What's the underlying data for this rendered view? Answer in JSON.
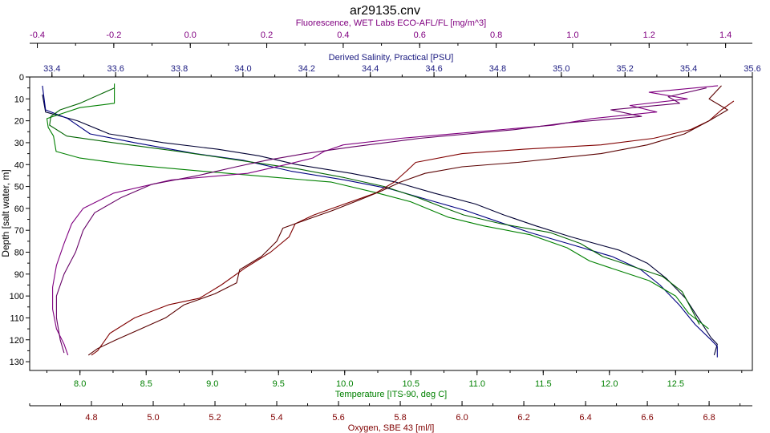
{
  "chart_data": {
    "type": "line",
    "title": "ar29135.cnv",
    "grid": false,
    "ylabel": "Depth [salt water, m]",
    "ylim": [
      0,
      134
    ],
    "yticks": [
      0,
      10,
      20,
      30,
      40,
      50,
      60,
      70,
      80,
      90,
      100,
      110,
      120,
      130
    ],
    "axes": [
      {
        "id": "fluor",
        "position": "top-outer",
        "label": "Fluorescence, WET Labs ECO-AFL/FL [mg/m^3]",
        "color": "#800080",
        "lim": [
          -0.42,
          1.47
        ],
        "ticks": [
          -0.4,
          -0.2,
          0.0,
          0.2,
          0.4,
          0.6,
          0.8,
          1.0,
          1.2,
          1.4
        ]
      },
      {
        "id": "salinity",
        "position": "top-inner",
        "label": "Derived Salinity, Practical [PSU]",
        "color": "#1a1a80",
        "lim": [
          33.33,
          35.6
        ],
        "ticks": [
          33.4,
          33.6,
          33.8,
          34.0,
          34.2,
          34.4,
          34.6,
          34.8,
          35.0,
          35.2,
          35.4,
          35.6
        ]
      },
      {
        "id": "temp",
        "position": "bottom-inner",
        "label": "Temperature [ITS-90, deg C]",
        "color": "#008000",
        "lim": [
          7.62,
          13.08
        ],
        "ticks": [
          8.0,
          8.5,
          9.0,
          9.5,
          10.0,
          10.5,
          11.0,
          11.5,
          12.0,
          12.5
        ]
      },
      {
        "id": "oxygen",
        "position": "bottom-outer",
        "label": "Oxygen, SBE 43 [ml/l]",
        "color": "#800000",
        "lim": [
          4.6,
          6.94
        ],
        "ticks": [
          4.8,
          5.0,
          5.2,
          5.4,
          5.6,
          5.8,
          6.0,
          6.2,
          6.4,
          6.6,
          6.8
        ]
      }
    ],
    "series": [
      {
        "axis": "salinity",
        "color": "#000033",
        "points": [
          [
            33.37,
            8
          ],
          [
            33.38,
            16
          ],
          [
            33.48,
            20
          ],
          [
            33.58,
            26
          ],
          [
            33.75,
            30
          ],
          [
            33.92,
            33
          ],
          [
            34.05,
            36
          ],
          [
            34.17,
            40
          ],
          [
            34.34,
            44
          ],
          [
            34.48,
            48
          ],
          [
            34.6,
            53
          ],
          [
            34.73,
            58
          ],
          [
            34.82,
            63
          ],
          [
            34.92,
            68
          ],
          [
            35.03,
            73
          ],
          [
            35.18,
            79
          ],
          [
            35.27,
            85
          ],
          [
            35.33,
            92
          ],
          [
            35.39,
            101
          ],
          [
            35.43,
            110
          ],
          [
            35.47,
            119
          ],
          [
            35.49,
            122
          ],
          [
            35.48,
            127
          ]
        ]
      },
      {
        "axis": "salinity",
        "color": "#000080",
        "points": [
          [
            33.37,
            4
          ],
          [
            33.38,
            15
          ],
          [
            33.45,
            19
          ],
          [
            33.52,
            26
          ],
          [
            33.66,
            30
          ],
          [
            33.85,
            35
          ],
          [
            34.0,
            38
          ],
          [
            34.15,
            43
          ],
          [
            34.32,
            47
          ],
          [
            34.46,
            51
          ],
          [
            34.58,
            56
          ],
          [
            34.7,
            61
          ],
          [
            34.8,
            66
          ],
          [
            34.9,
            71
          ],
          [
            35.02,
            76
          ],
          [
            35.16,
            82
          ],
          [
            35.25,
            88
          ],
          [
            35.31,
            95
          ],
          [
            35.37,
            104
          ],
          [
            35.42,
            113
          ],
          [
            35.47,
            120
          ],
          [
            35.49,
            123
          ],
          [
            35.49,
            128
          ]
        ]
      },
      {
        "axis": "temp",
        "color": "#008000",
        "points": [
          [
            8.26,
            3
          ],
          [
            8.26,
            12
          ],
          [
            8.0,
            14
          ],
          [
            7.85,
            17
          ],
          [
            7.75,
            19
          ],
          [
            7.76,
            23
          ],
          [
            7.8,
            27
          ],
          [
            7.82,
            34
          ],
          [
            8.0,
            37
          ],
          [
            8.37,
            40
          ],
          [
            8.92,
            43
          ],
          [
            9.5,
            46
          ],
          [
            9.9,
            48
          ],
          [
            10.25,
            53
          ],
          [
            10.5,
            57
          ],
          [
            10.62,
            60
          ],
          [
            10.78,
            64
          ],
          [
            11.05,
            68
          ],
          [
            11.4,
            72
          ],
          [
            11.68,
            78
          ],
          [
            11.85,
            84
          ],
          [
            12.05,
            88
          ],
          [
            12.3,
            93
          ],
          [
            12.5,
            100
          ],
          [
            12.6,
            108
          ],
          [
            12.75,
            115
          ]
        ]
      },
      {
        "axis": "temp",
        "color": "#006400",
        "points": [
          [
            8.26,
            5
          ],
          [
            8.0,
            12
          ],
          [
            7.85,
            15
          ],
          [
            7.78,
            18
          ],
          [
            7.77,
            22
          ],
          [
            7.9,
            27
          ],
          [
            8.25,
            30
          ],
          [
            8.75,
            34
          ],
          [
            9.2,
            38
          ],
          [
            9.65,
            42
          ],
          [
            10.0,
            46
          ],
          [
            10.3,
            50
          ],
          [
            10.55,
            55
          ],
          [
            10.72,
            59
          ],
          [
            10.9,
            63
          ],
          [
            11.18,
            67
          ],
          [
            11.55,
            71
          ],
          [
            11.78,
            76
          ],
          [
            11.95,
            82
          ],
          [
            12.15,
            86
          ],
          [
            12.4,
            91
          ],
          [
            12.55,
            98
          ],
          [
            12.62,
            106
          ],
          [
            12.68,
            113
          ]
        ]
      },
      {
        "axis": "fluor",
        "color": "#800080",
        "points": [
          [
            1.38,
            4
          ],
          [
            1.2,
            7
          ],
          [
            1.3,
            10
          ],
          [
            1.15,
            13
          ],
          [
            1.22,
            16
          ],
          [
            1.05,
            19
          ],
          [
            0.95,
            22
          ],
          [
            0.75,
            25
          ],
          [
            0.55,
            28
          ],
          [
            0.4,
            31
          ],
          [
            0.35,
            34
          ],
          [
            0.32,
            37
          ],
          [
            0.25,
            40
          ],
          [
            0.15,
            44
          ],
          [
            -0.05,
            47
          ],
          [
            -0.2,
            53
          ],
          [
            -0.28,
            60
          ],
          [
            -0.31,
            67
          ],
          [
            -0.33,
            76
          ],
          [
            -0.35,
            86
          ],
          [
            -0.36,
            96
          ],
          [
            -0.36,
            106
          ],
          [
            -0.35,
            115
          ],
          [
            -0.33,
            122
          ],
          [
            -0.32,
            127
          ]
        ]
      },
      {
        "axis": "fluor",
        "color": "#660066",
        "points": [
          [
            1.35,
            5
          ],
          [
            1.25,
            9
          ],
          [
            1.28,
            12
          ],
          [
            1.1,
            15
          ],
          [
            1.18,
            18
          ],
          [
            0.98,
            21
          ],
          [
            0.85,
            24
          ],
          [
            0.6,
            28
          ],
          [
            0.42,
            32
          ],
          [
            0.3,
            35
          ],
          [
            0.2,
            38
          ],
          [
            0.12,
            41
          ],
          [
            0.02,
            45
          ],
          [
            -0.1,
            49
          ],
          [
            -0.18,
            55
          ],
          [
            -0.25,
            62
          ],
          [
            -0.28,
            70
          ],
          [
            -0.3,
            80
          ],
          [
            -0.33,
            90
          ],
          [
            -0.35,
            100
          ],
          [
            -0.35,
            110
          ],
          [
            -0.34,
            120
          ],
          [
            -0.33,
            126
          ]
        ]
      },
      {
        "axis": "oxygen",
        "color": "#800000",
        "points": [
          [
            6.88,
            11
          ],
          [
            6.84,
            15
          ],
          [
            6.8,
            20
          ],
          [
            6.74,
            24
          ],
          [
            6.62,
            28
          ],
          [
            6.45,
            31
          ],
          [
            6.2,
            33
          ],
          [
            6.0,
            35
          ],
          [
            5.85,
            39
          ],
          [
            5.82,
            43
          ],
          [
            5.78,
            48
          ],
          [
            5.72,
            53
          ],
          [
            5.62,
            58
          ],
          [
            5.52,
            63
          ],
          [
            5.46,
            67
          ],
          [
            5.44,
            73
          ],
          [
            5.38,
            80
          ],
          [
            5.3,
            87
          ],
          [
            5.22,
            95
          ],
          [
            5.15,
            101
          ],
          [
            5.05,
            104
          ],
          [
            4.94,
            110
          ],
          [
            4.86,
            117
          ],
          [
            4.82,
            125
          ],
          [
            4.8,
            127
          ]
        ]
      },
      {
        "axis": "oxygen",
        "color": "#5a0000",
        "points": [
          [
            6.84,
            4
          ],
          [
            6.8,
            10
          ],
          [
            6.86,
            15
          ],
          [
            6.8,
            20
          ],
          [
            6.72,
            26
          ],
          [
            6.6,
            31
          ],
          [
            6.45,
            35
          ],
          [
            6.18,
            39
          ],
          [
            6.0,
            41
          ],
          [
            5.88,
            44
          ],
          [
            5.8,
            48
          ],
          [
            5.74,
            52
          ],
          [
            5.67,
            56
          ],
          [
            5.58,
            61
          ],
          [
            5.5,
            65
          ],
          [
            5.42,
            69
          ],
          [
            5.4,
            75
          ],
          [
            5.35,
            82
          ],
          [
            5.28,
            88
          ],
          [
            5.27,
            94
          ],
          [
            5.2,
            99
          ],
          [
            5.1,
            104
          ],
          [
            5.04,
            110
          ],
          [
            4.96,
            115
          ],
          [
            4.88,
            120
          ],
          [
            4.82,
            124
          ],
          [
            4.79,
            127
          ]
        ]
      }
    ]
  }
}
